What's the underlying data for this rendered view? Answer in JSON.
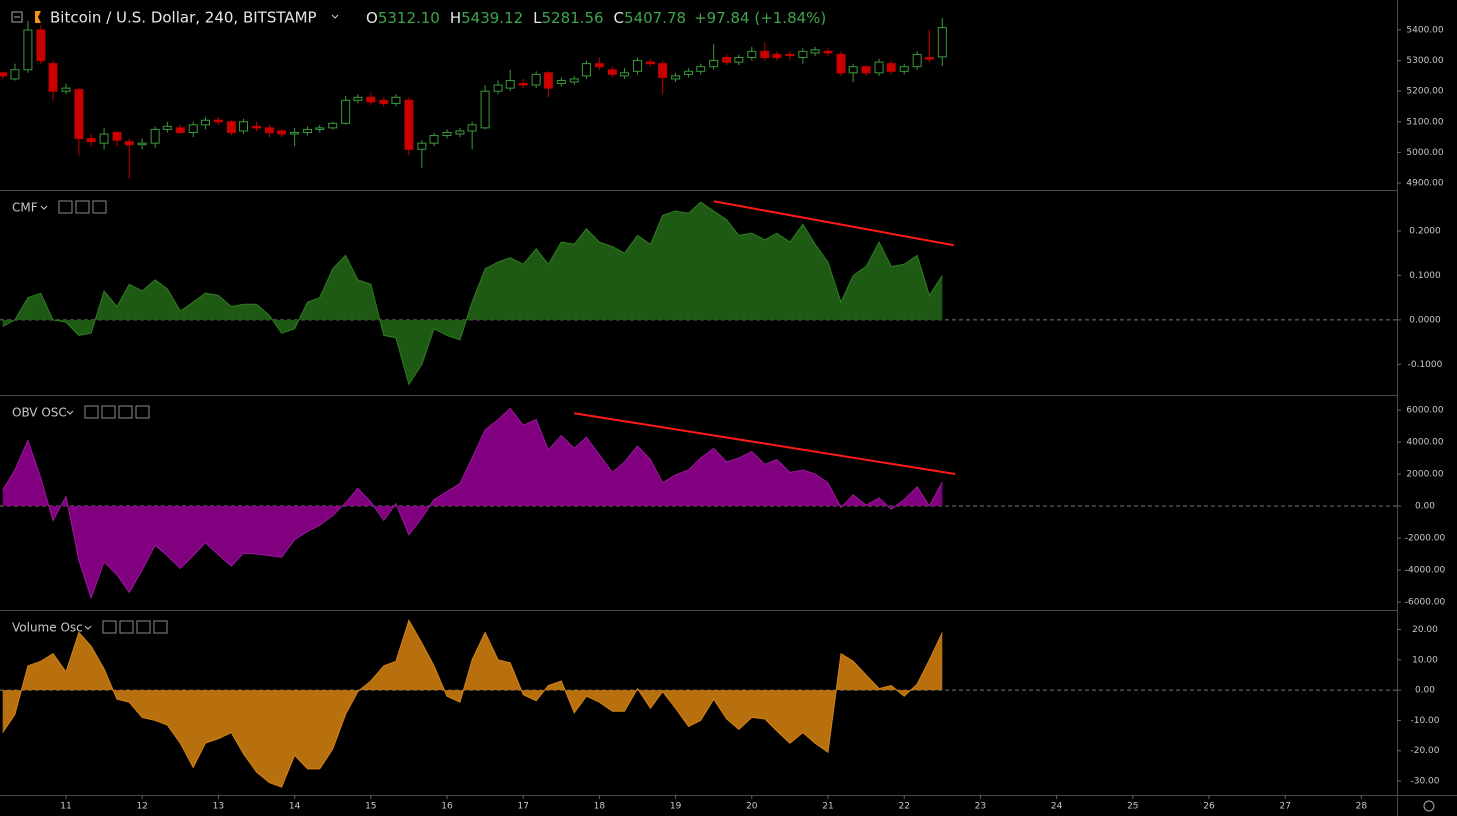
{
  "chart_data": [
    {
      "type": "candlestick",
      "title": "Bitcoin / U.S. Dollar, 240, BITSTAMP",
      "ohlc": [
        {
          "label": "O",
          "value": "5312.10"
        },
        {
          "label": "H",
          "value": "5439.12"
        },
        {
          "label": "L",
          "value": "5281.56"
        },
        {
          "label": "C",
          "value": "5407.78"
        }
      ],
      "change": "+97.84 (+1.84%)",
      "up_color": "#3c9a3c",
      "down_color": "#c80000",
      "x": [
        10.17,
        10.33,
        10.5,
        10.67,
        10.83,
        11,
        11.17,
        11.33,
        11.5,
        11.67,
        11.83,
        12,
        12.17,
        12.33,
        12.5,
        12.67,
        12.83,
        13,
        13.17,
        13.33,
        13.5,
        13.67,
        13.83,
        14,
        14.17,
        14.33,
        14.5,
        14.67,
        14.83,
        15,
        15.17,
        15.33,
        15.5,
        15.67,
        15.83,
        16,
        16.17,
        16.33,
        16.5,
        16.67,
        16.83,
        17,
        17.17,
        17.33,
        17.5,
        17.67,
        17.83,
        18,
        18.17,
        18.33,
        18.5,
        18.67,
        18.83,
        19,
        19.17,
        19.33,
        19.5,
        19.67,
        19.83,
        20,
        20.17,
        20.33,
        20.5,
        20.67,
        20.83,
        21,
        21.17,
        21.33,
        21.5,
        21.67,
        21.83,
        22,
        22.17,
        22.33,
        22.5
      ],
      "open": [
        5260,
        5240,
        5270,
        5400,
        5290,
        5200,
        5205,
        5045,
        5030,
        5065,
        5035,
        5025,
        5030,
        5075,
        5080,
        5065,
        5090,
        5105,
        5100,
        5070,
        5085,
        5080,
        5070,
        5060,
        5065,
        5075,
        5080,
        5095,
        5170,
        5180,
        5170,
        5160,
        5170,
        5010,
        5030,
        5055,
        5060,
        5070,
        5080,
        5200,
        5210,
        5225,
        5220,
        5260,
        5225,
        5230,
        5250,
        5290,
        5270,
        5250,
        5265,
        5295,
        5290,
        5240,
        5255,
        5265,
        5280,
        5310,
        5295,
        5310,
        5330,
        5320,
        5320,
        5310,
        5325,
        5330,
        5320,
        5260,
        5280,
        5260,
        5290,
        5265,
        5280,
        5310,
        5312.1
      ],
      "high": [
        5265,
        5290,
        5430,
        5415,
        5300,
        5225,
        5210,
        5060,
        5080,
        5070,
        5045,
        5045,
        5085,
        5100,
        5090,
        5100,
        5115,
        5115,
        5105,
        5110,
        5100,
        5090,
        5075,
        5080,
        5085,
        5090,
        5100,
        5185,
        5190,
        5195,
        5180,
        5190,
        5180,
        5040,
        5065,
        5075,
        5080,
        5100,
        5220,
        5235,
        5270,
        5240,
        5265,
        5265,
        5245,
        5250,
        5300,
        5310,
        5280,
        5275,
        5310,
        5305,
        5300,
        5260,
        5275,
        5290,
        5355,
        5320,
        5320,
        5345,
        5360,
        5330,
        5330,
        5340,
        5345,
        5340,
        5330,
        5290,
        5285,
        5305,
        5300,
        5290,
        5330,
        5400,
        5439.12
      ],
      "low": [
        5240,
        5235,
        5260,
        5290,
        5170,
        5190,
        4990,
        5020,
        5010,
        5020,
        4915,
        5010,
        5015,
        5065,
        5060,
        5050,
        5075,
        5090,
        5055,
        5060,
        5070,
        5050,
        5050,
        5020,
        5055,
        5065,
        5075,
        5090,
        5160,
        5155,
        5150,
        5150,
        4990,
        4950,
        5020,
        5045,
        5050,
        5010,
        5075,
        5190,
        5200,
        5210,
        5210,
        5180,
        5215,
        5220,
        5240,
        5270,
        5245,
        5240,
        5255,
        5280,
        5190,
        5230,
        5245,
        5255,
        5270,
        5285,
        5285,
        5300,
        5300,
        5300,
        5300,
        5290,
        5315,
        5315,
        5250,
        5230,
        5250,
        5250,
        5255,
        5255,
        5270,
        5295,
        5281.56
      ],
      "close": [
        5250,
        5270,
        5400,
        5300,
        5200,
        5210,
        5045,
        5035,
        5060,
        5040,
        5025,
        5030,
        5075,
        5085,
        5065,
        5090,
        5105,
        5100,
        5065,
        5100,
        5080,
        5065,
        5060,
        5065,
        5075,
        5080,
        5095,
        5170,
        5180,
        5165,
        5160,
        5180,
        5010,
        5030,
        5055,
        5065,
        5070,
        5090,
        5200,
        5220,
        5235,
        5220,
        5255,
        5210,
        5235,
        5240,
        5290,
        5280,
        5255,
        5260,
        5300,
        5290,
        5245,
        5250,
        5265,
        5280,
        5300,
        5295,
        5310,
        5330,
        5310,
        5310,
        5318,
        5330,
        5335,
        5325,
        5260,
        5280,
        5260,
        5295,
        5265,
        5280,
        5320,
        5305,
        5407.78
      ],
      "ylim": [
        4877,
        5498
      ],
      "yticks": [
        {
          "value": 4900,
          "label": "4900.00"
        },
        {
          "value": 5000,
          "label": "5000.00"
        },
        {
          "value": 5100,
          "label": "5100.00"
        },
        {
          "value": 5200,
          "label": "5200.00"
        },
        {
          "value": 5300,
          "label": "5300.00"
        },
        {
          "value": 5400,
          "label": "5400.00"
        }
      ]
    },
    {
      "type": "area",
      "title": "CMF",
      "color": "#1e5a14",
      "line_color": "#2f7d22",
      "zero_line": true,
      "x": [
        10.17,
        10.33,
        10.5,
        10.67,
        10.83,
        11,
        11.17,
        11.33,
        11.5,
        11.67,
        11.83,
        12,
        12.17,
        12.33,
        12.5,
        12.67,
        12.83,
        13,
        13.17,
        13.33,
        13.5,
        13.67,
        13.83,
        14,
        14.17,
        14.33,
        14.5,
        14.67,
        14.83,
        15,
        15.17,
        15.33,
        15.5,
        15.67,
        15.83,
        16,
        16.17,
        16.33,
        16.5,
        16.67,
        16.83,
        17,
        17.17,
        17.33,
        17.5,
        17.67,
        17.83,
        18,
        18.17,
        18.33,
        18.5,
        18.67,
        18.83,
        19,
        19.17,
        19.33,
        19.5,
        19.67,
        19.83,
        20,
        20.17,
        20.33,
        20.5,
        20.67,
        20.83,
        21,
        21.17,
        21.33,
        21.5,
        21.67,
        21.83,
        22,
        22.17,
        22.33,
        22.5
      ],
      "values": [
        -0.015,
        0,
        0.05,
        0.06,
        0,
        -0.005,
        -0.035,
        -0.03,
        0.065,
        0.03,
        0.08,
        0.065,
        0.09,
        0.07,
        0.02,
        0.04,
        0.06,
        0.055,
        0.03,
        0.035,
        0.035,
        0.01,
        -0.03,
        -0.02,
        0.04,
        0.05,
        0.115,
        0.145,
        0.09,
        0.08,
        -0.035,
        -0.04,
        -0.145,
        -0.1,
        -0.02,
        -0.035,
        -0.045,
        0.04,
        0.115,
        0.13,
        0.14,
        0.125,
        0.16,
        0.125,
        0.175,
        0.17,
        0.205,
        0.175,
        0.165,
        0.15,
        0.19,
        0.17,
        0.235,
        0.245,
        0.24,
        0.265,
        0.245,
        0.225,
        0.19,
        0.195,
        0.18,
        0.195,
        0.175,
        0.215,
        0.17,
        0.13,
        0.04,
        0.1,
        0.12,
        0.175,
        0.12,
        0.125,
        0.145,
        0.055,
        0.1
      ],
      "trendline": {
        "x": [
          19.5,
          22.65
        ],
        "y": [
          0.267,
          0.168
        ],
        "color": "#ff1a1a"
      },
      "ylim": [
        -0.169,
        0.29
      ],
      "yticks": [
        {
          "value": -0.1,
          "label": "-0.1000"
        },
        {
          "value": 0,
          "label": "0.0000"
        },
        {
          "value": 0.1,
          "label": "0.1000"
        },
        {
          "value": 0.2,
          "label": "0.2000"
        }
      ]
    },
    {
      "type": "area",
      "title": "OBV OSC",
      "color": "#800080",
      "line_color": "#9a1a9a",
      "zero_line": true,
      "x": [
        10.17,
        10.33,
        10.5,
        10.67,
        10.83,
        11,
        11.17,
        11.33,
        11.5,
        11.67,
        11.83,
        12,
        12.17,
        12.33,
        12.5,
        12.67,
        12.83,
        13,
        13.17,
        13.33,
        13.5,
        13.67,
        13.83,
        14,
        14.17,
        14.33,
        14.5,
        14.67,
        14.83,
        15,
        15.17,
        15.33,
        15.5,
        15.67,
        15.83,
        16,
        16.17,
        16.33,
        16.5,
        16.67,
        16.83,
        17,
        17.17,
        17.33,
        17.5,
        17.67,
        17.83,
        18,
        18.17,
        18.33,
        18.5,
        18.67,
        18.83,
        19,
        19.17,
        19.33,
        19.5,
        19.67,
        19.83,
        20,
        20.17,
        20.33,
        20.5,
        20.67,
        20.83,
        21,
        21.17,
        21.33,
        21.5,
        21.67,
        21.83,
        22,
        22.17,
        22.33,
        22.5
      ],
      "values": [
        1000,
        2250,
        4100,
        1750,
        -900,
        600,
        -3400,
        -5750,
        -3500,
        -4300,
        -5400,
        -4000,
        -2450,
        -3100,
        -3900,
        -3100,
        -2300,
        -3050,
        -3750,
        -2950,
        -3000,
        -3100,
        -3200,
        -2100,
        -1600,
        -1200,
        -600,
        200,
        1100,
        250,
        -900,
        150,
        -1800,
        -750,
        400,
        900,
        1400,
        3000,
        4750,
        5400,
        6100,
        5050,
        5400,
        3500,
        4400,
        3600,
        4300,
        3200,
        2100,
        2750,
        3750,
        2900,
        1450,
        1950,
        2250,
        3000,
        3600,
        2750,
        3000,
        3400,
        2600,
        2900,
        2100,
        2250,
        2000,
        1450,
        -100,
        700,
        50,
        500,
        -200,
        400,
        1200,
        0,
        1500
      ],
      "trendline": {
        "x": [
          17.67,
          22.67
        ],
        "y": [
          5800,
          2000
        ],
        "color": "#ff1a1a"
      },
      "ylim": [
        -6500,
        6875
      ],
      "yticks": [
        {
          "value": -6000,
          "label": "-6000.00"
        },
        {
          "value": -4000,
          "label": "-4000.00"
        },
        {
          "value": -2000,
          "label": "-2000.00"
        },
        {
          "value": 0,
          "label": "0.00"
        },
        {
          "value": 2000,
          "label": "2000.00"
        },
        {
          "value": 4000,
          "label": "4000.00"
        },
        {
          "value": 6000,
          "label": "6000.00"
        }
      ]
    },
    {
      "type": "area",
      "title": "Volume Osc",
      "color": "#b8700f",
      "line_color": "#d08418",
      "zero_line": true,
      "x": [
        10.17,
        10.33,
        10.5,
        10.67,
        10.83,
        11,
        11.17,
        11.33,
        11.5,
        11.67,
        11.83,
        12,
        12.17,
        12.33,
        12.5,
        12.67,
        12.83,
        13,
        13.17,
        13.33,
        13.5,
        13.67,
        13.83,
        14,
        14.17,
        14.33,
        14.5,
        14.67,
        14.83,
        15,
        15.17,
        15.33,
        15.5,
        15.67,
        15.83,
        16,
        16.17,
        16.33,
        16.5,
        16.67,
        16.83,
        17,
        17.17,
        17.33,
        17.5,
        17.67,
        17.83,
        18,
        18.17,
        18.33,
        18.5,
        18.67,
        18.83,
        19,
        19.17,
        19.33,
        19.5,
        19.67,
        19.83,
        20,
        20.17,
        20.33,
        20.5,
        20.67,
        20.83,
        21,
        21.17,
        21.33,
        21.5,
        21.67,
        21.83,
        22,
        22.17,
        22.33,
        22.5
      ],
      "values": [
        -14,
        -8,
        8,
        9.5,
        12,
        6,
        19,
        14.5,
        7,
        -3,
        -4,
        -9,
        -10,
        -11.5,
        -17.5,
        -25.5,
        -17.5,
        -16,
        -14,
        -21,
        -27,
        -30.5,
        -32,
        -21.5,
        -26,
        -26,
        -19.5,
        -8,
        -0.5,
        3,
        8,
        9.5,
        23,
        15.5,
        8,
        -2,
        -4,
        10,
        19,
        10,
        9,
        -1.5,
        -3.5,
        1.5,
        3,
        -7.5,
        -2,
        -4,
        -7,
        -7,
        0.5,
        -6,
        -0.5,
        -6,
        -12,
        -10,
        -3,
        -9.5,
        -13,
        -9,
        -9.5,
        -13.5,
        -17.5,
        -14,
        -17.5,
        -20.5,
        12,
        9.5,
        5,
        0.5,
        1.5,
        -2,
        2,
        10,
        19
      ],
      "ylim": [
        -34.6,
        26.1
      ],
      "yticks": [
        {
          "value": -30,
          "label": "-30.00"
        },
        {
          "value": -20,
          "label": "-20.00"
        },
        {
          "value": -10,
          "label": "-10.00"
        },
        {
          "value": 0,
          "label": "0.00"
        },
        {
          "value": 10,
          "label": "10.00"
        },
        {
          "value": 20,
          "label": "20.00"
        }
      ],
      "xlim": [
        10.134,
        28.467
      ],
      "xticks": [
        11,
        12,
        13,
        14,
        15,
        16,
        17,
        18,
        19,
        20,
        21,
        22,
        23,
        24,
        25,
        26,
        27,
        28
      ]
    }
  ]
}
